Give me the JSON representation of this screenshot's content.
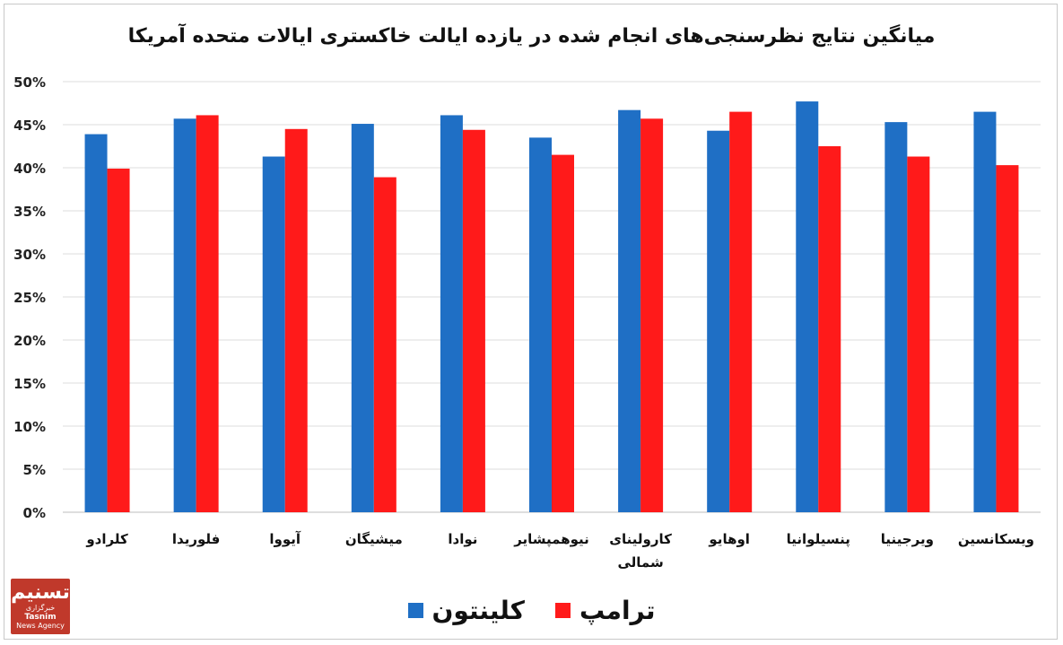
{
  "chart_data": {
    "type": "bar",
    "title": "میانگین نتایج نظرسنجی‌های انجام شده در یازده ایالت خاکستری ایالات متحده آمریکا",
    "categories": [
      "کلرادو",
      "فلوریدا",
      "آیووا",
      "میشیگان",
      "نوادا",
      "نیوهمپشایر",
      "کارولینای شمالی",
      "اوهایو",
      "پنسیلوانیا",
      "ویرجینیا",
      "ویسکانسین"
    ],
    "series": [
      {
        "name": "کلینتون",
        "color": "#1f6fc5",
        "values": [
          43.9,
          45.7,
          41.3,
          45.1,
          46.1,
          43.5,
          46.7,
          44.3,
          47.7,
          45.3,
          46.5
        ]
      },
      {
        "name": "ترامپ",
        "color": "#ff1a1a",
        "values": [
          39.9,
          46.1,
          44.5,
          38.9,
          44.4,
          41.5,
          45.7,
          46.5,
          42.5,
          41.3,
          40.3
        ]
      }
    ],
    "ylim": [
      0,
      50
    ],
    "yticks": [
      "0%",
      "5%",
      "10%",
      "15%",
      "20%",
      "25%",
      "30%",
      "35%",
      "40%",
      "45%",
      "50%"
    ],
    "grid": true,
    "legend_position": "bottom"
  },
  "logo": {
    "mark": "تسنیم",
    "sub": "خبرگزاری",
    "name_en": "Tasnim",
    "sub_en": "News Agency"
  }
}
